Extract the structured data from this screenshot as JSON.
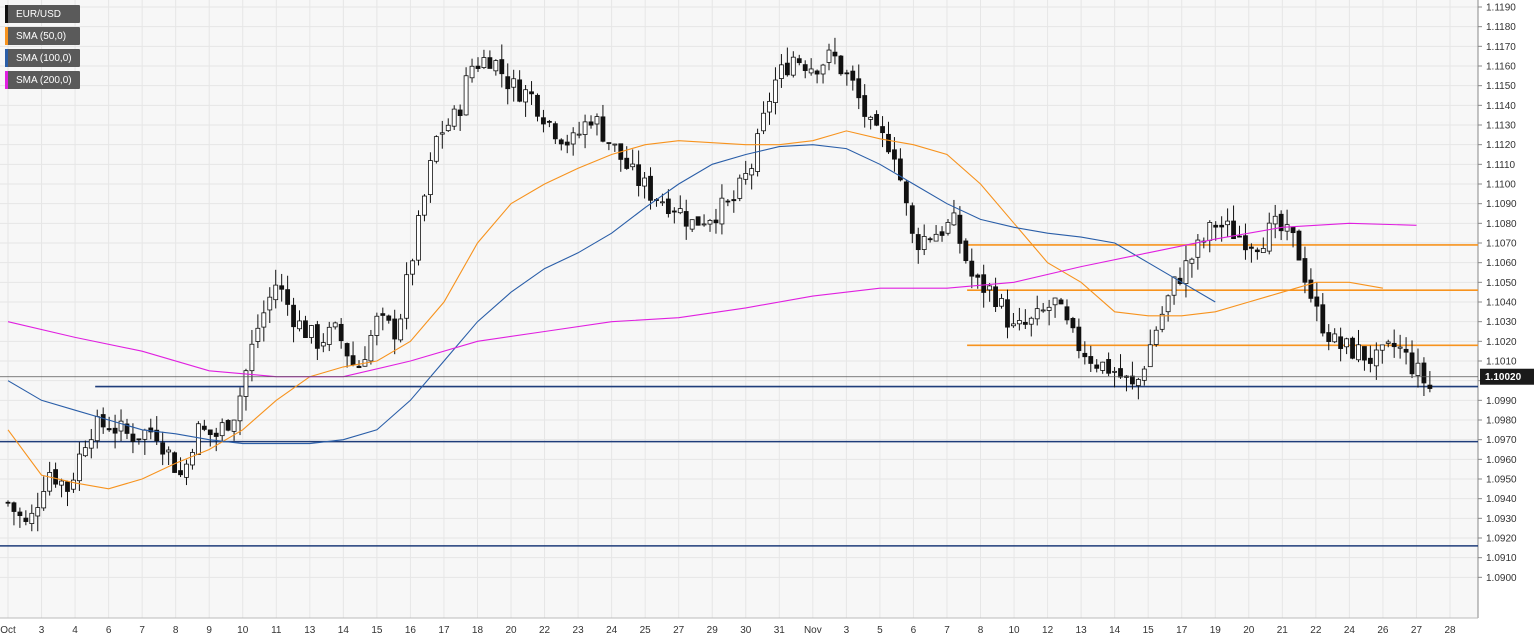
{
  "legend": [
    {
      "label": "EUR/USD",
      "color": "#111111"
    },
    {
      "label": "SMA (50,0)",
      "color": "#f7931e"
    },
    {
      "label": "SMA (100,0)",
      "color": "#2a5ea8"
    },
    {
      "label": "SMA (200,0)",
      "color": "#e020e0"
    }
  ],
  "current_price_label": "1.10020",
  "chart_data": {
    "type": "candlestick",
    "series_name": "EUR/USD",
    "ylim": [
      1.089,
      1.119
    ],
    "y_ticks": [
      "1.1190",
      "1.1180",
      "1.1170",
      "1.1160",
      "1.1150",
      "1.1140",
      "1.1130",
      "1.1120",
      "1.1110",
      "1.1100",
      "1.1090",
      "1.1080",
      "1.1070",
      "1.1060",
      "1.1050",
      "1.1040",
      "1.1030",
      "1.1020",
      "1.1010",
      "1.1000",
      "1.0990",
      "1.0980",
      "1.0970",
      "1.0960",
      "1.0950",
      "1.0940",
      "1.0930",
      "1.0920",
      "1.0910",
      "1.0900"
    ],
    "x_labels": [
      "Oct",
      "3",
      "4",
      "6",
      "7",
      "8",
      "9",
      "10",
      "11",
      "13",
      "14",
      "15",
      "16",
      "17",
      "18",
      "20",
      "22",
      "23",
      "24",
      "25",
      "27",
      "29",
      "30",
      "31",
      "Nov",
      "3",
      "5",
      "6",
      "7",
      "8",
      "10",
      "12",
      "13",
      "14",
      "15",
      "17",
      "19",
      "20",
      "21",
      "22",
      "24",
      "26",
      "27",
      "28"
    ],
    "x_label_positions": [
      0,
      1,
      2,
      3,
      4,
      5,
      6,
      7,
      8,
      9,
      10,
      11,
      12,
      13,
      14,
      15,
      16,
      17,
      18,
      19,
      20,
      21,
      22,
      23,
      24,
      25,
      26,
      27,
      28,
      29,
      30,
      31,
      32,
      33,
      34,
      35,
      36,
      37,
      38,
      39,
      40,
      41,
      42,
      43
    ],
    "last_price": 1.1002,
    "horizontal_levels": [
      {
        "value": 1.0997,
        "color": "#1f3d7a"
      },
      {
        "value": 1.0969,
        "color": "#1f3d7a"
      },
      {
        "value": 1.0916,
        "color": "#1f3d7a"
      },
      {
        "value": 1.1018,
        "color": "#f7931e"
      },
      {
        "value": 1.1046,
        "color": "#f7931e"
      },
      {
        "value": 1.1069,
        "color": "#f7931e"
      }
    ],
    "close_path": [
      [
        0,
        1.0938
      ],
      [
        0.6,
        1.0925
      ],
      [
        1.2,
        1.0955
      ],
      [
        1.8,
        1.0945
      ],
      [
        2.4,
        1.0975
      ],
      [
        3,
        1.0978
      ],
      [
        3.6,
        1.0972
      ],
      [
        4.4,
        1.0975
      ],
      [
        5.2,
        1.095
      ],
      [
        5.6,
        1.0975
      ],
      [
        6.2,
        1.0972
      ],
      [
        6.8,
        1.0985
      ],
      [
        7.4,
        1.1025
      ],
      [
        8,
        1.105
      ],
      [
        8.6,
        1.103
      ],
      [
        9.2,
        1.102
      ],
      [
        9.8,
        1.1025
      ],
      [
        10.4,
        1.1005
      ],
      [
        11,
        1.103
      ],
      [
        11.6,
        1.1025
      ],
      [
        12.2,
        1.1075
      ],
      [
        12.8,
        1.1125
      ],
      [
        13.4,
        1.1135
      ],
      [
        13.8,
        1.116
      ],
      [
        14.4,
        1.1165
      ],
      [
        15,
        1.115
      ],
      [
        15.6,
        1.1145
      ],
      [
        16.2,
        1.113
      ],
      [
        16.8,
        1.112
      ],
      [
        17.4,
        1.1135
      ],
      [
        18,
        1.112
      ],
      [
        18.6,
        1.1105
      ],
      [
        19.2,
        1.1095
      ],
      [
        19.8,
        1.109
      ],
      [
        20.4,
        1.108
      ],
      [
        21,
        1.1085
      ],
      [
        21.6,
        1.109
      ],
      [
        22.2,
        1.111
      ],
      [
        22.8,
        1.115
      ],
      [
        23.4,
        1.1165
      ],
      [
        24,
        1.116
      ],
      [
        24.6,
        1.1165
      ],
      [
        25.2,
        1.115
      ],
      [
        25.8,
        1.1125
      ],
      [
        26.4,
        1.112
      ],
      [
        27,
        1.107
      ],
      [
        27.6,
        1.1075
      ],
      [
        28.2,
        1.108
      ],
      [
        28.8,
        1.105
      ],
      [
        29.4,
        1.1045
      ],
      [
        30,
        1.1025
      ],
      [
        30.6,
        1.103
      ],
      [
        31.2,
        1.104
      ],
      [
        31.8,
        1.102
      ],
      [
        32.4,
        1.101
      ],
      [
        33,
        1.1005
      ],
      [
        33.6,
        1.0995
      ],
      [
        34.2,
        1.1025
      ],
      [
        34.8,
        1.105
      ],
      [
        35.4,
        1.1065
      ],
      [
        36,
        1.108
      ],
      [
        36.6,
        1.1075
      ],
      [
        37.2,
        1.107
      ],
      [
        37.8,
        1.1078
      ],
      [
        38.4,
        1.107
      ],
      [
        39,
        1.1035
      ],
      [
        39.6,
        1.1018
      ],
      [
        40.2,
        1.1015
      ],
      [
        40.8,
        1.101
      ],
      [
        41.4,
        1.1018
      ],
      [
        42,
        1.1005
      ],
      [
        42.4,
        1.0996
      ]
    ],
    "series": [
      {
        "name": "SMA (50,0)",
        "color": "#f7931e",
        "values": [
          [
            0,
            1.0975
          ],
          [
            1,
            1.0952
          ],
          [
            2,
            1.0948
          ],
          [
            3,
            1.0945
          ],
          [
            4,
            1.095
          ],
          [
            5,
            1.0958
          ],
          [
            6,
            1.0965
          ],
          [
            7,
            1.0975
          ],
          [
            8,
            1.099
          ],
          [
            9,
            1.1002
          ],
          [
            10,
            1.1007
          ],
          [
            11,
            1.101
          ],
          [
            12,
            1.102
          ],
          [
            13,
            1.104
          ],
          [
            14,
            1.107
          ],
          [
            15,
            1.109
          ],
          [
            16,
            1.11
          ],
          [
            17,
            1.1108
          ],
          [
            18,
            1.1115
          ],
          [
            19,
            1.112
          ],
          [
            20,
            1.1122
          ],
          [
            21,
            1.1121
          ],
          [
            22,
            1.112
          ],
          [
            23,
            1.112
          ],
          [
            24,
            1.1122
          ],
          [
            25,
            1.1127
          ],
          [
            26,
            1.1123
          ],
          [
            27,
            1.112
          ],
          [
            28,
            1.1115
          ],
          [
            29,
            1.11
          ],
          [
            30,
            1.108
          ],
          [
            31,
            1.106
          ],
          [
            32,
            1.105
          ],
          [
            33,
            1.1035
          ],
          [
            34,
            1.1033
          ],
          [
            35,
            1.1033
          ],
          [
            36,
            1.1035
          ],
          [
            37,
            1.104
          ],
          [
            38,
            1.1045
          ],
          [
            39,
            1.105
          ],
          [
            40,
            1.105
          ],
          [
            41,
            1.1047
          ]
        ]
      },
      {
        "name": "SMA (100,0)",
        "color": "#2a5ea8",
        "values": [
          [
            0,
            1.1
          ],
          [
            1,
            1.099
          ],
          [
            2,
            1.0985
          ],
          [
            3,
            1.098
          ],
          [
            4,
            1.0975
          ],
          [
            5,
            1.0973
          ],
          [
            6,
            1.097
          ],
          [
            7,
            1.0968
          ],
          [
            8,
            1.0968
          ],
          [
            9,
            1.0968
          ],
          [
            10,
            1.097
          ],
          [
            11,
            1.0975
          ],
          [
            12,
            1.099
          ],
          [
            13,
            1.101
          ],
          [
            14,
            1.103
          ],
          [
            15,
            1.1045
          ],
          [
            16,
            1.1057
          ],
          [
            17,
            1.1065
          ],
          [
            18,
            1.1075
          ],
          [
            19,
            1.1088
          ],
          [
            20,
            1.11
          ],
          [
            21,
            1.111
          ],
          [
            22,
            1.1115
          ],
          [
            23,
            1.1119
          ],
          [
            24,
            1.112
          ],
          [
            25,
            1.1118
          ],
          [
            26,
            1.111
          ],
          [
            27,
            1.11
          ],
          [
            28,
            1.109
          ],
          [
            29,
            1.1082
          ],
          [
            30,
            1.1078
          ],
          [
            31,
            1.1075
          ],
          [
            32,
            1.1073
          ],
          [
            33,
            1.107
          ],
          [
            34,
            1.106
          ],
          [
            35,
            1.105
          ],
          [
            36,
            1.104
          ]
        ]
      },
      {
        "name": "SMA (200,0)",
        "color": "#e020e0",
        "values": [
          [
            0,
            1.103
          ],
          [
            2,
            1.1022
          ],
          [
            4,
            1.1015
          ],
          [
            6,
            1.1005
          ],
          [
            8,
            1.1002
          ],
          [
            10,
            1.1002
          ],
          [
            12,
            1.101
          ],
          [
            14,
            1.102
          ],
          [
            16,
            1.1025
          ],
          [
            18,
            1.103
          ],
          [
            20,
            1.1032
          ],
          [
            22,
            1.1037
          ],
          [
            24,
            1.1043
          ],
          [
            26,
            1.1047
          ],
          [
            28,
            1.1047
          ],
          [
            30,
            1.105
          ],
          [
            32,
            1.1058
          ],
          [
            34,
            1.1065
          ],
          [
            36,
            1.1072
          ],
          [
            38,
            1.1078
          ],
          [
            40,
            1.108
          ],
          [
            42,
            1.1079
          ]
        ]
      }
    ]
  }
}
